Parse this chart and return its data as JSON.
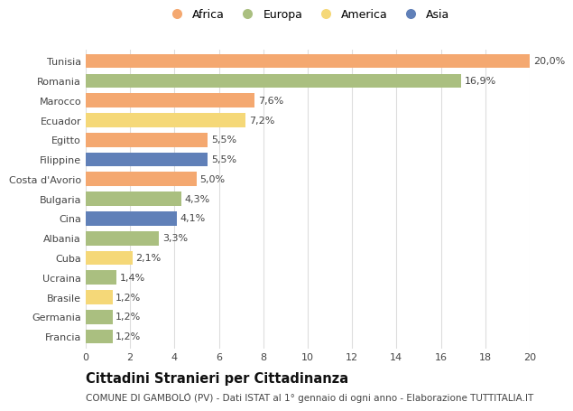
{
  "categories": [
    "Tunisia",
    "Romania",
    "Marocco",
    "Ecuador",
    "Egitto",
    "Filippine",
    "Costa d'Avorio",
    "Bulgaria",
    "Cina",
    "Albania",
    "Cuba",
    "Ucraina",
    "Brasile",
    "Germania",
    "Francia"
  ],
  "values": [
    20.0,
    16.9,
    7.6,
    7.2,
    5.5,
    5.5,
    5.0,
    4.3,
    4.1,
    3.3,
    2.1,
    1.4,
    1.2,
    1.2,
    1.2
  ],
  "labels": [
    "20,0%",
    "16,9%",
    "7,6%",
    "7,2%",
    "5,5%",
    "5,5%",
    "5,0%",
    "4,3%",
    "4,1%",
    "3,3%",
    "2,1%",
    "1,4%",
    "1,2%",
    "1,2%",
    "1,2%"
  ],
  "continents": [
    "Africa",
    "Europa",
    "Africa",
    "America",
    "Africa",
    "Asia",
    "Africa",
    "Europa",
    "Asia",
    "Europa",
    "America",
    "Europa",
    "America",
    "Europa",
    "Europa"
  ],
  "continent_colors": {
    "Africa": "#F4A870",
    "Europa": "#AABF80",
    "America": "#F5D878",
    "Asia": "#6080B8"
  },
  "legend_order": [
    "Africa",
    "Europa",
    "America",
    "Asia"
  ],
  "title": "Cittadini Stranieri per Cittadinanza",
  "subtitle": "COMUNE DI GAMBOLÒ (PV) - Dati ISTAT al 1° gennaio di ogni anno - Elaborazione TUTTITALIA.IT",
  "xlim": [
    0,
    20
  ],
  "xticks": [
    0,
    2,
    4,
    6,
    8,
    10,
    12,
    14,
    16,
    18,
    20
  ],
  "bg_color": "#ffffff",
  "grid_color": "#dddddd",
  "bar_height": 0.72,
  "label_fontsize": 8,
  "tick_fontsize": 8,
  "title_fontsize": 10.5,
  "subtitle_fontsize": 7.5
}
